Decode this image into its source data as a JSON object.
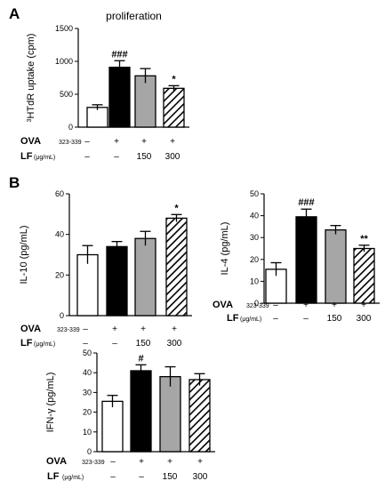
{
  "panels": {
    "a": "A",
    "b": "B"
  },
  "conditions": {
    "ova_label": "OVA",
    "ova_sub": "323-339",
    "lf_label": "LF",
    "lf_unit": "(μg/mL)",
    "ova_values": [
      "–",
      "+",
      "+",
      "+"
    ],
    "lf_values": [
      "–",
      "–",
      "150",
      "300"
    ]
  },
  "chart_data": [
    {
      "id": "prolif",
      "type": "bar",
      "title": "proliferation",
      "ylabel": "³HTdR uptake (cpm)",
      "ylim": [
        0,
        1500
      ],
      "yticks": [
        0,
        500,
        1000,
        1500
      ],
      "categories": [
        "OVA– LF–",
        "OVA+ LF–",
        "OVA+ LF150",
        "OVA+ LF300"
      ],
      "values": [
        300,
        910,
        780,
        590
      ],
      "errors": [
        40,
        100,
        110,
        40
      ],
      "significance": [
        "",
        "###",
        "",
        "*"
      ],
      "fills": [
        "white",
        "black",
        "gray",
        "hatch"
      ]
    },
    {
      "id": "il10",
      "type": "bar",
      "title": "",
      "ylabel": "IL-10 (pg/mL)",
      "ylim": [
        0,
        60
      ],
      "yticks": [
        0,
        20,
        40,
        60
      ],
      "categories": [
        "OVA– LF–",
        "OVA+ LF–",
        "OVA+ LF150",
        "OVA+ LF300"
      ],
      "values": [
        30,
        34,
        38,
        48
      ],
      "errors": [
        4.5,
        2.5,
        3.5,
        1.8
      ],
      "significance": [
        "",
        "",
        "",
        "*"
      ],
      "fills": [
        "white",
        "black",
        "gray",
        "hatch"
      ]
    },
    {
      "id": "il4",
      "type": "bar",
      "title": "",
      "ylabel": "IL-4 (pg/mL)",
      "ylim": [
        0,
        50
      ],
      "yticks": [
        0,
        10,
        20,
        30,
        40,
        50
      ],
      "categories": [
        "OVA– LF–",
        "OVA+ LF–",
        "OVA+ LF150",
        "OVA+ LF300"
      ],
      "values": [
        15.5,
        39.5,
        33.5,
        25
      ],
      "errors": [
        3,
        3.5,
        2,
        1.5
      ],
      "significance": [
        "",
        "###",
        "",
        "**"
      ],
      "fills": [
        "white",
        "black",
        "gray",
        "hatch"
      ]
    },
    {
      "id": "ifn",
      "type": "bar",
      "title": "",
      "ylabel": "IFN-γ (pg/mL)",
      "ylim": [
        0,
        50
      ],
      "yticks": [
        0,
        10,
        20,
        30,
        40,
        50
      ],
      "categories": [
        "OVA– LF–",
        "OVA+ LF–",
        "OVA+ LF150",
        "OVA+ LF300"
      ],
      "values": [
        25.5,
        41,
        38,
        36.5
      ],
      "errors": [
        3,
        3,
        5,
        3
      ],
      "significance": [
        "",
        "#",
        "",
        ""
      ],
      "fills": [
        "white",
        "black",
        "gray",
        "hatch"
      ]
    }
  ],
  "colors": {
    "black": "#000000",
    "gray": "#a6a6a6",
    "white": "#ffffff"
  }
}
